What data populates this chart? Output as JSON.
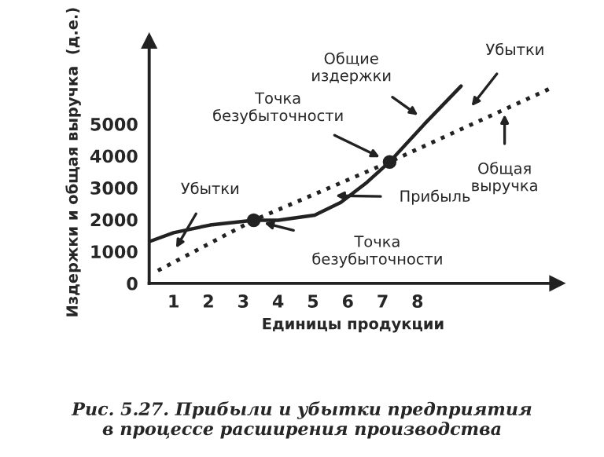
{
  "chart_data": {
    "type": "line",
    "title": "Рис. 5.27. Прибыли и убытки предприятия\nв процессе расширения производства",
    "xlabel": "Единицы продукции",
    "ylabel": "Издержки и общая выручка  (д.е.)",
    "xlim": [
      0.3,
      12
    ],
    "ylim": [
      0,
      7600
    ],
    "xticks": [
      1,
      2,
      3,
      4,
      5,
      6,
      7,
      8
    ],
    "yticks": [
      0,
      1000,
      2000,
      3000,
      4000,
      5000
    ],
    "grid": false,
    "legend": false,
    "series": [
      {
        "type": "line",
        "color": "#222222",
        "line_style": "solid",
        "x": [
          0.33,
          1,
          2.05,
          3.3,
          4,
          5.05,
          5.8,
          6.55,
          7.2,
          8.2,
          9.25
        ],
        "values": [
          1320,
          1590,
          1830,
          1980,
          1980,
          2140,
          2540,
          3170,
          3810,
          5000,
          6190
        ]
      },
      {
        "type": "line",
        "color": "#222222",
        "line_style": "dotted",
        "x": [
          0.55,
          3.3,
          7.2,
          11.8
        ],
        "values": [
          400,
          1980,
          3810,
          6110
        ]
      },
      {
        "type": "scatter",
        "color": "#222222",
        "marker": "circle",
        "x": [
          3.3,
          7.2
        ],
        "values": [
          1980,
          3810
        ]
      }
    ],
    "annotations": [
      "Убытки",
      {
        "text": "Точка\nбезубыточности",
        "x": 7.2,
        "y": 3810
      },
      "Прибыль",
      {
        "text": "Точка\nбезубыточности",
        "x": 3.3,
        "y": 1980
      },
      {
        "text": "Общие\nиздержки",
        "x": 8.27,
        "y": 5080
      },
      "Убытки",
      "Общая\nвыручка"
    ]
  }
}
